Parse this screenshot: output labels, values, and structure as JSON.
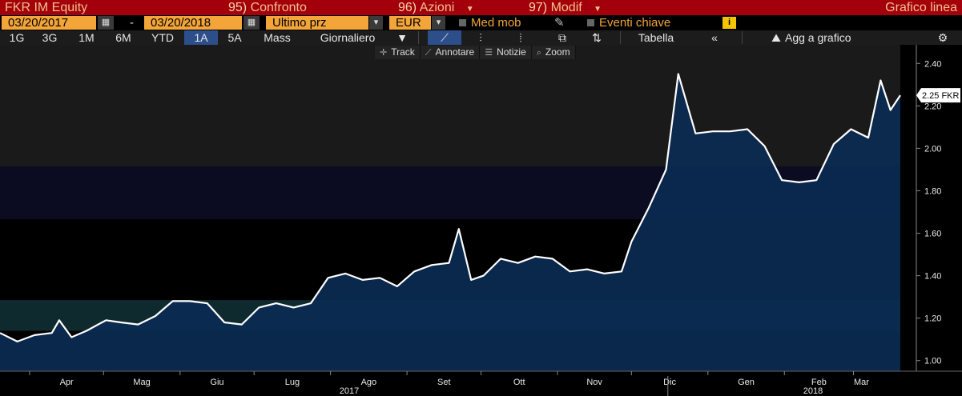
{
  "topbar": {
    "security": "FKR IM Equity",
    "compare_num": "95)",
    "compare_label": "Confronto",
    "actions_num": "96)",
    "actions_label": "Azioni",
    "modify_num": "97)",
    "modify_label": "Modif",
    "chart_title": "Grafico linea"
  },
  "controls": {
    "start_date": "03/20/2017",
    "dash": "-",
    "end_date": "03/20/2018",
    "price_field": "Ultimo prz",
    "currency": "EUR",
    "moving_avg_label": "Med mob",
    "key_events_label": "Eventi chiave",
    "info_icon": "i"
  },
  "periods": {
    "items": [
      "1G",
      "3G",
      "1M",
      "6M",
      "YTD",
      "1A",
      "5A",
      "Mass"
    ],
    "active": "1A",
    "frequency": "Giornaliero",
    "table_label": "Tabella",
    "collapse_label": "«",
    "add_to_chart": "Agg a grafico"
  },
  "tools": {
    "track": "Track",
    "annotate": "Annotare",
    "news": "Notizie",
    "zoom": "Zoom"
  },
  "colors": {
    "accent_red": "#a3000b",
    "accent_orange": "#f4a53a",
    "line": "#ffffff",
    "area": "#0b2a52",
    "active_tab": "#2c4f8c"
  },
  "chart_data": {
    "type": "area",
    "ylim": [
      0.95,
      2.45
    ],
    "y_ticks": [
      "1.00",
      "1.20",
      "1.40",
      "1.60",
      "1.80",
      "2.00",
      "2.20",
      "2.40"
    ],
    "y_tick_values": [
      1.0,
      1.2,
      1.4,
      1.6,
      1.8,
      2.0,
      2.2,
      2.4
    ],
    "x_months": [
      "Apr",
      "Mag",
      "Giu",
      "Lug",
      "Ago",
      "Set",
      "Ott",
      "Nov",
      "Dic",
      "Gen",
      "Feb",
      "Mar"
    ],
    "x_years": [
      "2017",
      "2018"
    ],
    "last_price_label": "2.25 FKR",
    "last_value": 2.25,
    "x_range": [
      "2017-03-20",
      "2018-03-20"
    ],
    "series": [
      {
        "x": [
          "2017-03-20",
          "2017-03-27",
          "2017-04-03",
          "2017-04-10",
          "2017-04-13",
          "2017-04-18",
          "2017-04-24",
          "2017-05-02",
          "2017-05-08",
          "2017-05-15",
          "2017-05-22",
          "2017-05-29",
          "2017-06-05",
          "2017-06-12",
          "2017-06-19",
          "2017-06-26",
          "2017-07-03",
          "2017-07-10",
          "2017-07-17",
          "2017-07-24",
          "2017-07-31",
          "2017-08-07",
          "2017-08-14",
          "2017-08-21",
          "2017-08-28",
          "2017-09-04",
          "2017-09-11",
          "2017-09-18",
          "2017-09-22",
          "2017-09-27",
          "2017-10-02",
          "2017-10-09",
          "2017-10-16",
          "2017-10-23",
          "2017-10-30",
          "2017-11-06",
          "2017-11-13",
          "2017-11-20",
          "2017-11-27",
          "2017-12-01",
          "2017-12-08",
          "2017-12-15",
          "2017-12-20",
          "2017-12-27",
          "2018-01-03",
          "2018-01-10",
          "2018-01-17",
          "2018-01-24",
          "2018-01-31",
          "2018-02-07",
          "2018-02-14",
          "2018-02-21",
          "2018-02-28",
          "2018-03-07",
          "2018-03-12",
          "2018-03-16",
          "2018-03-20"
        ],
        "y": [
          1.13,
          1.09,
          1.12,
          1.13,
          1.19,
          1.11,
          1.14,
          1.19,
          1.18,
          1.17,
          1.21,
          1.28,
          1.28,
          1.27,
          1.18,
          1.17,
          1.25,
          1.27,
          1.25,
          1.27,
          1.39,
          1.41,
          1.38,
          1.39,
          1.35,
          1.42,
          1.45,
          1.46,
          1.62,
          1.38,
          1.4,
          1.48,
          1.46,
          1.49,
          1.48,
          1.42,
          1.43,
          1.41,
          1.42,
          1.56,
          1.72,
          1.9,
          2.35,
          2.07,
          2.08,
          2.08,
          2.09,
          2.01,
          1.85,
          1.84,
          1.85,
          2.02,
          2.09,
          2.05,
          2.32,
          2.18,
          2.25
        ]
      }
    ]
  }
}
